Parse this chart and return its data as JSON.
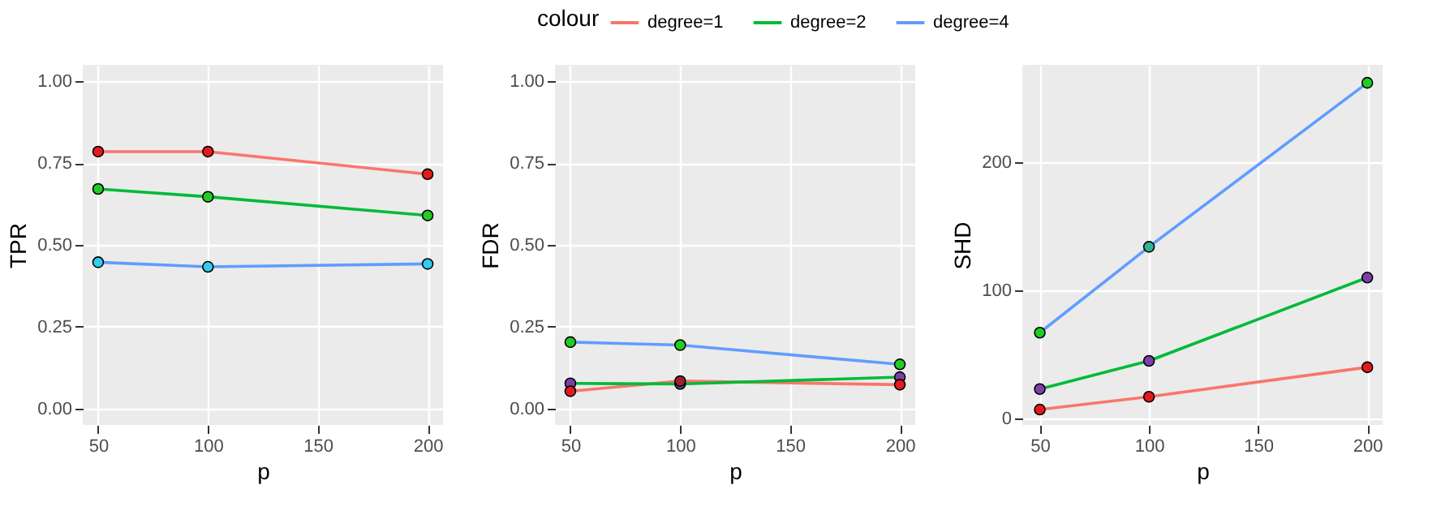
{
  "chart_data": [
    {
      "type": "line",
      "x": [
        50,
        100,
        200
      ],
      "xlabel": "p",
      "ylabel": "TPR",
      "xlim": [
        43,
        207
      ],
      "xticks": [
        50,
        100,
        150,
        200
      ],
      "ylim": [
        -0.05,
        1.05
      ],
      "yticks": [
        {
          "value": 0,
          "label": "0.00"
        },
        {
          "value": 0.25,
          "label": "0.25"
        },
        {
          "value": 0.5,
          "label": "0.50"
        },
        {
          "value": 0.75,
          "label": "0.75"
        },
        {
          "value": 1,
          "label": "1.00"
        }
      ],
      "grid": true,
      "marker": "circle",
      "line_style": "solid",
      "legend": "top",
      "legend_title": "colour",
      "series": [
        {
          "name": "degree=1",
          "color": "#f8766d",
          "colors": [
            "#e41a1c",
            "#e41a1c",
            "#e41a1c"
          ],
          "values": [
            0.785,
            0.785,
            0.716
          ]
        },
        {
          "name": "degree=2",
          "color": "#00ba38",
          "colors": [
            "#22cc22",
            "#22cc22",
            "#22cc22"
          ],
          "values": [
            0.671,
            0.647,
            0.59
          ]
        },
        {
          "name": "degree=4",
          "color": "#619cff",
          "colors": [
            "#33ccee",
            "#33ccee",
            "#33ccee"
          ],
          "values": [
            0.447,
            0.433,
            0.442
          ]
        }
      ]
    },
    {
      "type": "line",
      "x": [
        50,
        100,
        200
      ],
      "xlabel": "p",
      "ylabel": "FDR",
      "xlim": [
        43,
        207
      ],
      "xticks": [
        50,
        100,
        150,
        200
      ],
      "ylim": [
        -0.05,
        1.05
      ],
      "yticks": [
        {
          "value": 0,
          "label": "0.00"
        },
        {
          "value": 0.25,
          "label": "0.25"
        },
        {
          "value": 0.5,
          "label": "0.50"
        },
        {
          "value": 0.75,
          "label": "0.75"
        },
        {
          "value": 1,
          "label": "1.00"
        }
      ],
      "grid": true,
      "marker": "circle",
      "line_style": "solid",
      "series": [
        {
          "name": "degree=1",
          "color": "#f8766d",
          "colors": [
            "#e41a1c",
            "#a0202a",
            "#e41a1c"
          ],
          "values": [
            0.053,
            0.084,
            0.073
          ]
        },
        {
          "name": "degree=2",
          "color": "#00ba38",
          "colors": [
            "#7e3fa8",
            "#5a4a90",
            "#7e3fa8"
          ],
          "values": [
            0.077,
            0.075,
            0.096
          ]
        },
        {
          "name": "degree=4",
          "color": "#619cff",
          "colors": [
            "#22cc22",
            "#22cc22",
            "#22cc22"
          ],
          "values": [
            0.203,
            0.194,
            0.135
          ]
        }
      ]
    },
    {
      "type": "line",
      "x": [
        50,
        100,
        200
      ],
      "xlabel": "p",
      "ylabel": "SHD",
      "xlim": [
        42,
        207
      ],
      "xticks": [
        50,
        100,
        150,
        200
      ],
      "ylim": [
        -5,
        276
      ],
      "yticks": [
        0,
        100,
        200
      ],
      "grid": true,
      "marker": "circle",
      "line_style": "solid",
      "series": [
        {
          "name": "degree=1",
          "color": "#f8766d",
          "colors": [
            "#e41a1c",
            "#e41a1c",
            "#e41a1c"
          ],
          "values": [
            7,
            17,
            40
          ]
        },
        {
          "name": "degree=2",
          "color": "#00ba38",
          "colors": [
            "#7e3fa8",
            "#7e3fa8",
            "#7e3fa8"
          ],
          "values": [
            23,
            45,
            110
          ]
        },
        {
          "name": "degree=4",
          "color": "#619cff",
          "colors": [
            "#22cc22",
            "#2fb58f",
            "#22cc22"
          ],
          "values": [
            67,
            134,
            262
          ]
        }
      ]
    }
  ]
}
